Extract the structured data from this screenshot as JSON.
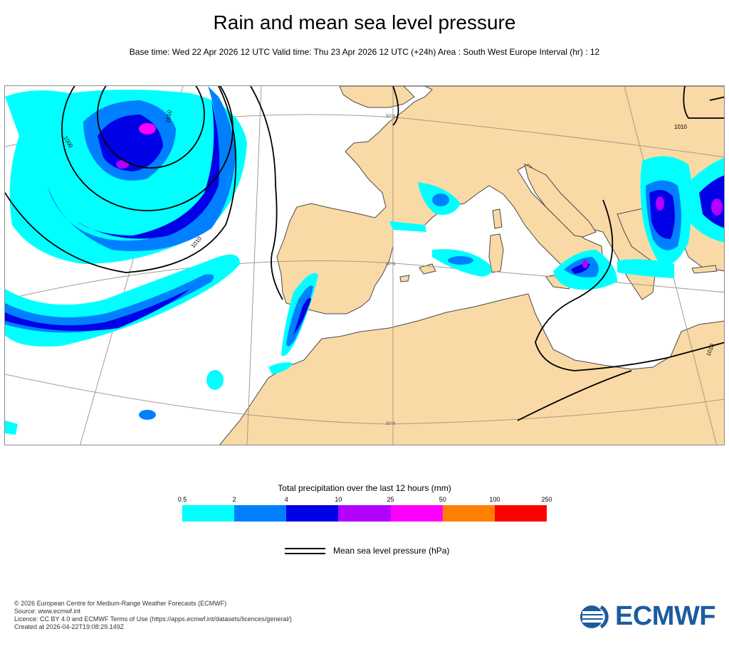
{
  "header": {
    "title": "Rain and mean sea level pressure",
    "subtitle": "Base time: Wed 22 Apr 2026 12 UTC Valid time: Thu 23 Apr 2026 12 UTC (+24h) Area : South West Europe Interval (hr) : 12"
  },
  "map": {
    "isobar_labels": [
      "1000",
      "1010",
      "1010",
      "1010",
      "1010"
    ],
    "latitude_labels": [
      "50°N",
      "40°N",
      "30°N"
    ],
    "colors": {
      "land": "#f9d9a5",
      "sea": "#ffffff",
      "graticule": "#a89a88",
      "isobar": "#000000",
      "coast": "#4a4a4a"
    }
  },
  "legend": {
    "title": "Total precipitation over the last 12 hours (mm)",
    "ticks": [
      "0.5",
      "2",
      "4",
      "10",
      "25",
      "50",
      "100",
      "250"
    ],
    "colors": [
      "#00ffff",
      "#0080ff",
      "#0000e6",
      "#b300ff",
      "#ff00ff",
      "#ff00e6",
      "#ff8000",
      "#ff0000"
    ],
    "band_colors": [
      "#00ffff",
      "#0080ff",
      "#0000e6",
      "#b300ff",
      "#ff00ff",
      "#ff8000",
      "#ff0000"
    ],
    "pressure_label": "Mean sea level pressure (hPa)"
  },
  "footer": {
    "lines": [
      "© 2026 European Centre for Medium-Range Weather Forecasts (ECMWF)",
      "Source: www.ecmwf.int",
      "Licence: CC BY 4.0 and ECMWF Terms of Use (https://apps.ecmwf.int/datasets/licences/general/)",
      "Created at 2026-04-22T19:08:29.149Z"
    ],
    "logo_text": "ECMWF"
  }
}
